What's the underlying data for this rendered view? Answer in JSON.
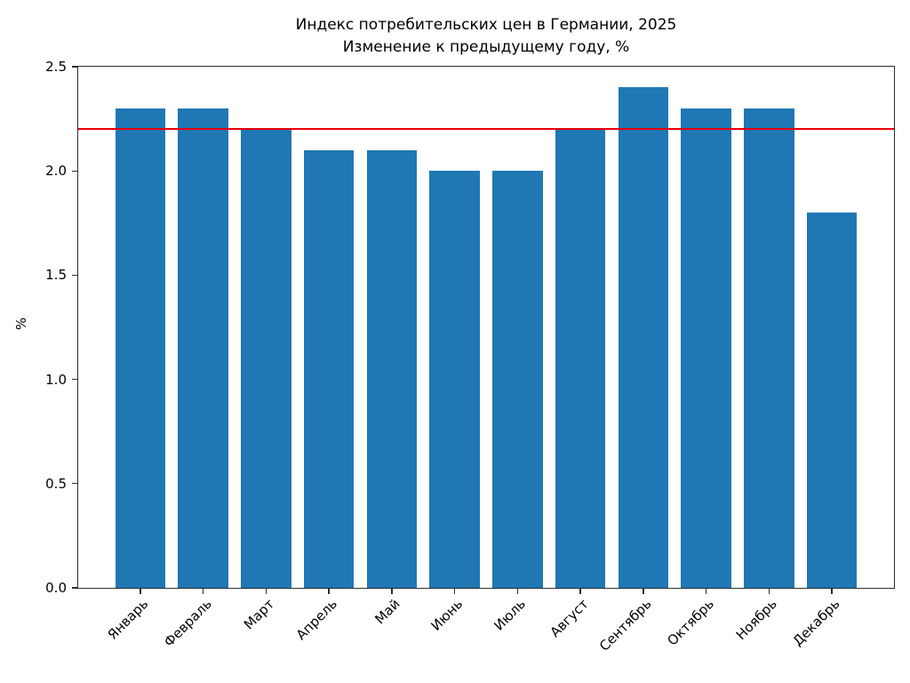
{
  "chart_data": {
    "type": "bar",
    "title": "Индекс потребительских цен в Германии, 2025",
    "subtitle": "Изменение к предыдущему году, %",
    "categories": [
      "Январь",
      "Февраль",
      "Март",
      "Апрель",
      "Май",
      "Июнь",
      "Июль",
      "Август",
      "Сентябрь",
      "Октябрь",
      "Ноябрь",
      "Декабрь"
    ],
    "values": [
      2.3,
      2.3,
      2.2,
      2.1,
      2.1,
      2.0,
      2.0,
      2.2,
      2.4,
      2.3,
      2.3,
      1.8
    ],
    "xlabel": "",
    "ylabel": "%",
    "ylim": [
      0,
      2.5
    ],
    "yticks": [
      "0.0",
      "0.5",
      "1.0",
      "1.5",
      "2.0",
      "2.5"
    ],
    "xtick_rotation_deg": 45,
    "grid": false,
    "legend": null,
    "bar_color": "#1f77b4",
    "bar_width_ratio": 0.8,
    "reference_line": {
      "value": 2.2,
      "color": "#e8000b",
      "orientation": "horizontal"
    },
    "axis_color": "#2e2e2e",
    "background_color": "#ffffff"
  }
}
